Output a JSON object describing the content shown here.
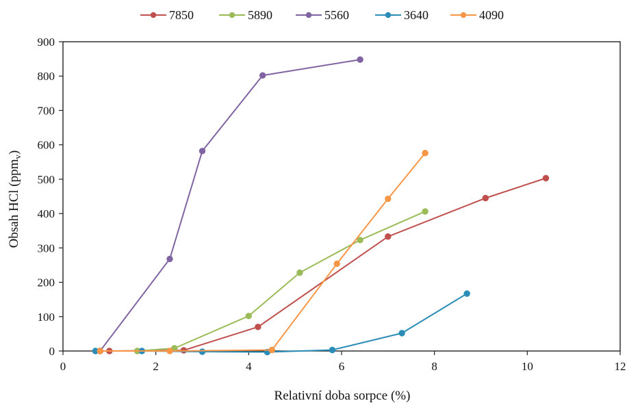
{
  "chart_data": {
    "type": "line",
    "xlabel": "Relativní doba sorpce (%)",
    "ylabel": "Obsah HCl (ppm",
    "ylabel_sub": "v",
    "ylabel_end": ")",
    "xlim": [
      0,
      12
    ],
    "ylim": [
      0,
      900
    ],
    "xticks": [
      0,
      2,
      4,
      6,
      8,
      10,
      12
    ],
    "yticks": [
      0,
      100,
      200,
      300,
      400,
      500,
      600,
      700,
      800,
      900
    ],
    "grid": false,
    "legend_position": "top",
    "series": [
      {
        "name": "7850",
        "color": "#c0504d",
        "x": [
          0.8,
          1.0,
          2.6,
          4.2,
          7.0,
          9.1,
          10.4
        ],
        "y": [
          0,
          0,
          2,
          70,
          333,
          445,
          503
        ]
      },
      {
        "name": "5890",
        "color": "#9bbb59",
        "x": [
          0.8,
          1.6,
          2.4,
          4.0,
          5.1,
          6.4,
          7.8
        ],
        "y": [
          0,
          0,
          8,
          102,
          228,
          323,
          406
        ]
      },
      {
        "name": "5560",
        "color": "#8064a2",
        "x": [
          0.8,
          2.3,
          3.0,
          4.3,
          6.4
        ],
        "y": [
          0,
          268,
          582,
          802,
          848
        ]
      },
      {
        "name": "3640",
        "color": "#2b8cb8",
        "x": [
          0.7,
          1.7,
          3.0,
          4.4,
          5.8,
          7.3,
          8.7
        ],
        "y": [
          0,
          0,
          -2,
          -3,
          3,
          52,
          167
        ]
      },
      {
        "name": "4090",
        "color": "#f79646",
        "x": [
          0.8,
          2.3,
          4.5,
          5.9,
          7.0,
          7.8
        ],
        "y": [
          0,
          0,
          3,
          254,
          443,
          576
        ]
      }
    ]
  }
}
